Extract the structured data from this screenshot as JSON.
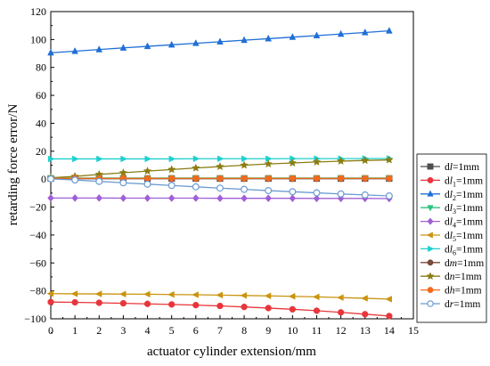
{
  "chart_data": {
    "type": "line",
    "xlabel": "actuator cylinder extension/mm",
    "ylabel": "retarding force error/N",
    "xlim": [
      0,
      15
    ],
    "ylim": [
      -100,
      120
    ],
    "xticks": [
      "0",
      "1",
      "2",
      "3",
      "4",
      "5",
      "6",
      "7",
      "8",
      "9",
      "10",
      "11",
      "12",
      "13",
      "14",
      "15"
    ],
    "yticks": [
      "120",
      "100",
      "80",
      "60",
      "40",
      "20",
      "0",
      "−20",
      "−40",
      "−60",
      "−80",
      "−100"
    ],
    "grid": false,
    "legend_position": "right",
    "x": [
      0,
      1,
      2,
      3,
      4,
      5,
      6,
      7,
      8,
      9,
      10,
      11,
      12,
      13,
      14
    ],
    "series": [
      {
        "name": "dl=1mm",
        "legend": {
          "pre": "d",
          "italic": "l",
          "sub": "",
          "post": "=1mm"
        },
        "color": "#4d4d4d",
        "marker": "square",
        "values": [
          0.5,
          0.5,
          0.5,
          0.5,
          0.5,
          0.5,
          0.5,
          0.5,
          0.5,
          0.5,
          0.5,
          0.5,
          0.5,
          0.5,
          0.5
        ]
      },
      {
        "name": "dl1=1mm",
        "legend": {
          "pre": "d",
          "italic": "l",
          "sub": "1",
          "post": "=1mm"
        },
        "color": "#e8353b",
        "marker": "circle",
        "values": [
          -88,
          -88.2,
          -88.5,
          -88.9,
          -89.3,
          -89.7,
          -90.2,
          -90.8,
          -91.5,
          -92.3,
          -93.2,
          -94.2,
          -95.4,
          -96.7,
          -98
        ]
      },
      {
        "name": "dl2=1mm",
        "legend": {
          "pre": "d",
          "italic": "l",
          "sub": "2",
          "post": "=1mm"
        },
        "color": "#1f6fd6",
        "marker": "triangle-up",
        "values": [
          90.5,
          91.6,
          92.8,
          94,
          95.1,
          96.2,
          97.3,
          98.4,
          99.5,
          100.6,
          101.7,
          102.8,
          103.9,
          105,
          106.2
        ]
      },
      {
        "name": "dl3=1mm",
        "legend": {
          "pre": "d",
          "italic": "l",
          "sub": "3",
          "post": "=1mm"
        },
        "color": "#2ec27e",
        "marker": "triangle-down",
        "values": [
          0.8,
          0.8,
          0.8,
          0.8,
          0.8,
          0.8,
          0.8,
          0.8,
          0.8,
          0.8,
          0.8,
          0.8,
          0.8,
          0.8,
          0.8
        ]
      },
      {
        "name": "dl4=1mm",
        "legend": {
          "pre": "d",
          "italic": "l",
          "sub": "4",
          "post": "=1mm"
        },
        "color": "#a05fd6",
        "marker": "diamond",
        "values": [
          -13.5,
          -13.5,
          -13.5,
          -13.6,
          -13.6,
          -13.6,
          -13.6,
          -13.7,
          -13.7,
          -13.7,
          -13.7,
          -13.8,
          -13.8,
          -13.8,
          -13.9
        ]
      },
      {
        "name": "dl5=1mm",
        "legend": {
          "pre": "d",
          "italic": "l",
          "sub": "5",
          "post": "=1mm"
        },
        "color": "#c9940f",
        "marker": "triangle-left",
        "values": [
          -82,
          -82.1,
          -82.2,
          -82.3,
          -82.4,
          -82.6,
          -82.8,
          -83,
          -83.3,
          -83.6,
          -83.9,
          -84.3,
          -84.8,
          -85.3,
          -85.9
        ]
      },
      {
        "name": "dl6=1mm",
        "legend": {
          "pre": "d",
          "italic": "l",
          "sub": "6",
          "post": "=1mm"
        },
        "color": "#1ecfcf",
        "marker": "triangle-right",
        "values": [
          14.5,
          14.5,
          14.5,
          14.5,
          14.5,
          14.5,
          14.6,
          14.6,
          14.6,
          14.6,
          14.7,
          14.7,
          14.7,
          14.8,
          14.8
        ]
      },
      {
        "name": "dm=1mm",
        "legend": {
          "pre": "d",
          "italic": "m",
          "sub": "",
          "post": "=1mm"
        },
        "color": "#7a4b3a",
        "marker": "circle",
        "values": [
          0.3,
          0.3,
          0.3,
          0.3,
          0.3,
          0.3,
          0.3,
          0.3,
          0.3,
          0.3,
          0.3,
          0.3,
          0.3,
          0.3,
          0.3
        ]
      },
      {
        "name": "dn=1mm",
        "legend": {
          "pre": "d",
          "italic": "n",
          "sub": "",
          "post": "=1mm"
        },
        "color": "#8a7d12",
        "marker": "star",
        "values": [
          1,
          2,
          3.4,
          4.6,
          5.8,
          6.9,
          8,
          9,
          10,
          10.9,
          11.6,
          12.3,
          12.9,
          13.4,
          13.8
        ]
      },
      {
        "name": "dh=1mm",
        "legend": {
          "pre": "d",
          "italic": "h",
          "sub": "",
          "post": "=1mm"
        },
        "color": "#f26b1d",
        "marker": "circle",
        "values": [
          0.6,
          0.6,
          0.6,
          0.6,
          0.6,
          0.6,
          0.6,
          0.6,
          0.6,
          0.6,
          0.6,
          0.6,
          0.6,
          0.6,
          0.6
        ]
      },
      {
        "name": "dr=1mm",
        "legend": {
          "pre": "d",
          "italic": "r",
          "sub": "",
          "post": "=1mm"
        },
        "color": "#6b9bd1",
        "marker": "circle-hollow",
        "values": [
          0.2,
          -0.6,
          -1.6,
          -2.6,
          -3.6,
          -4.5,
          -5.5,
          -6.4,
          -7.3,
          -8.2,
          -9,
          -9.8,
          -10.6,
          -11.3,
          -12
        ]
      }
    ]
  }
}
